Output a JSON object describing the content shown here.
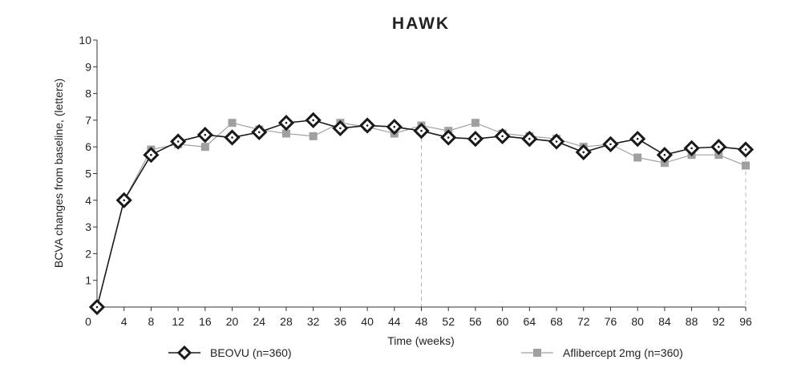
{
  "chart_data": {
    "type": "line",
    "title": "HAWK",
    "xlabel": "Time (weeks)",
    "ylabel": "BCVA changes from baseline, (letters)",
    "x": [
      0,
      4,
      8,
      12,
      16,
      20,
      24,
      28,
      32,
      36,
      40,
      44,
      48,
      52,
      56,
      60,
      64,
      68,
      72,
      76,
      80,
      84,
      88,
      92,
      96
    ],
    "xticks": [
      0,
      4,
      8,
      12,
      16,
      20,
      24,
      28,
      32,
      36,
      40,
      44,
      48,
      52,
      56,
      60,
      64,
      68,
      72,
      76,
      80,
      84,
      88,
      92,
      96
    ],
    "yticks": [
      1,
      2,
      3,
      4,
      5,
      6,
      7,
      8,
      9,
      10
    ],
    "xlim": [
      0,
      96
    ],
    "ylim": [
      0,
      10
    ],
    "reference_lines_x": [
      48,
      96
    ],
    "grid": false,
    "legend_position": "bottom",
    "series": [
      {
        "name": "BEOVU (n=360)",
        "color": "#1a1a1a",
        "marker": "diamond",
        "values": [
          0,
          4.0,
          5.7,
          6.2,
          6.45,
          6.35,
          6.55,
          6.9,
          7.0,
          6.7,
          6.8,
          6.75,
          6.6,
          6.35,
          6.3,
          6.4,
          6.3,
          6.2,
          5.8,
          6.1,
          6.3,
          5.7,
          5.95,
          6.0,
          5.9
        ]
      },
      {
        "name": "Aflibercept 2mg (n=360)",
        "color": "#a0a0a0",
        "marker": "square",
        "values": [
          0,
          4.0,
          5.9,
          6.1,
          6.0,
          6.9,
          6.65,
          6.5,
          6.4,
          6.9,
          6.75,
          6.5,
          6.8,
          6.6,
          6.9,
          6.5,
          6.4,
          6.3,
          6.0,
          6.1,
          5.6,
          5.4,
          5.7,
          5.7,
          5.3
        ]
      }
    ]
  }
}
